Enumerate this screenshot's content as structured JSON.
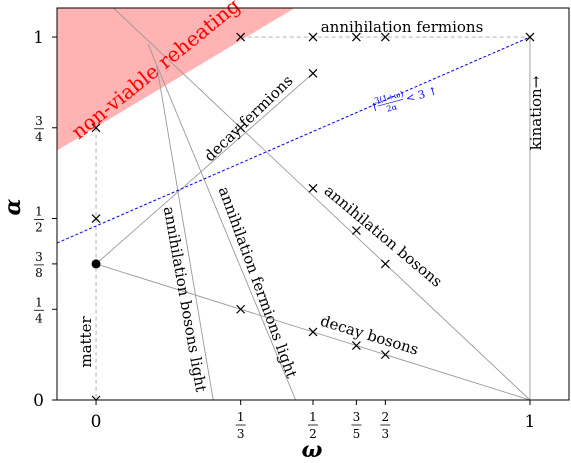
{
  "chart_data": {
    "type": "scatter",
    "title": "",
    "xlabel": "ω",
    "ylabel": "α",
    "xlim": [
      -0.09,
      1.09
    ],
    "ylim": [
      0,
      1.08
    ],
    "grid": false,
    "xticks": [
      {
        "value": 0,
        "label": "0"
      },
      {
        "value": 0.3333,
        "num": "1",
        "den": "3"
      },
      {
        "value": 0.5,
        "num": "1",
        "den": "2"
      },
      {
        "value": 0.6,
        "num": "3",
        "den": "5"
      },
      {
        "value": 0.6667,
        "num": "2",
        "den": "3"
      },
      {
        "value": 1,
        "label": "1"
      }
    ],
    "yticks": [
      {
        "value": 0,
        "label": "0"
      },
      {
        "value": 0.25,
        "num": "1",
        "den": "4"
      },
      {
        "value": 0.375,
        "num": "3",
        "den": "8"
      },
      {
        "value": 0.5,
        "num": "1",
        "den": "2"
      },
      {
        "value": 0.75,
        "num": "3",
        "den": "4"
      },
      {
        "value": 1,
        "label": "1"
      }
    ],
    "shaded_region": {
      "label": "non-viable reheating",
      "color": "#ffb3b3",
      "boundary": [
        [
          -0.09,
          0.6875
        ],
        [
          0.458,
          1.08
        ]
      ]
    },
    "bound_line": {
      "label": "↑ 3(1+ω)/2α < 3 ↑",
      "label_prefix": "↑",
      "label_num": "3(1+ω)",
      "label_den": "2α",
      "label_suffix": "< 3 ↑",
      "color": "#0000ee",
      "points": [
        [
          -0.09,
          0.4325
        ],
        [
          1.0,
          1.0
        ]
      ]
    },
    "lines": [
      {
        "name": "annihilation fermions",
        "points": [
          [
            0.3333,
            1.0
          ],
          [
            1.0,
            1.0
          ]
        ],
        "dashed": true
      },
      {
        "name": "decay fermions",
        "points": [
          [
            0,
            0.375
          ],
          [
            0.5,
            0.9
          ]
        ]
      },
      {
        "name": "annihilation bosons",
        "points": [
          [
            0.04,
            1.08
          ],
          [
            1.0,
            0.0
          ]
        ]
      },
      {
        "name": "decay bosons",
        "points": [
          [
            0,
            0.375
          ],
          [
            1.0,
            0.0
          ]
        ]
      },
      {
        "name": "annihilation bosons light",
        "points": [
          [
            0.14,
            0.92
          ],
          [
            0.27,
            0.0
          ]
        ]
      },
      {
        "name": "annihilation fermions light",
        "points": [
          [
            0.12,
            0.98
          ],
          [
            0.46,
            0.0
          ]
        ]
      },
      {
        "name": "matter",
        "points": [
          [
            0,
            0.75
          ],
          [
            0,
            0.0
          ]
        ],
        "dashed": true
      },
      {
        "name": "kination→",
        "points": [
          [
            1.0,
            1.0
          ],
          [
            1.0,
            0.0
          ]
        ]
      }
    ],
    "markers": [
      {
        "x": 0.3333,
        "y": 1.0,
        "symbol": "x"
      },
      {
        "x": 0.5,
        "y": 1.0,
        "symbol": "x"
      },
      {
        "x": 0.6,
        "y": 1.0,
        "symbol": "x"
      },
      {
        "x": 0.6667,
        "y": 1.0,
        "symbol": "x"
      },
      {
        "x": 1.0,
        "y": 1.0,
        "symbol": "x"
      },
      {
        "x": 0.5,
        "y": 0.9,
        "symbol": "x"
      },
      {
        "x": 0,
        "y": 0.75,
        "symbol": "x"
      },
      {
        "x": 0.3333,
        "y": 0.75,
        "symbol": "x"
      },
      {
        "x": 0.5,
        "y": 0.5833,
        "symbol": "x"
      },
      {
        "x": 0,
        "y": 0.5,
        "symbol": "x"
      },
      {
        "x": 0.6,
        "y": 0.4667,
        "symbol": "x"
      },
      {
        "x": 0.6667,
        "y": 0.375,
        "symbol": "x"
      },
      {
        "x": 0,
        "y": 0.375,
        "symbol": "dot"
      },
      {
        "x": 0.3333,
        "y": 0.25,
        "symbol": "x"
      },
      {
        "x": 0.5,
        "y": 0.1875,
        "symbol": "x"
      },
      {
        "x": 0.6,
        "y": 0.15,
        "symbol": "x"
      },
      {
        "x": 0.6667,
        "y": 0.125,
        "symbol": "x"
      },
      {
        "x": 0,
        "y": 0.0,
        "symbol": "x"
      }
    ],
    "labels": {
      "annihilation_fermions": "annihilation fermions",
      "decay_fermions": "decay fermions",
      "annihilation_bosons": "annihilation bosons",
      "decay_bosons": "decay bosons",
      "annihilation_bosons_light": "annihilation bosons light",
      "annihilation_fermions_light": "annihilation fermions light",
      "matter": "matter",
      "kination": "kination→"
    }
  }
}
